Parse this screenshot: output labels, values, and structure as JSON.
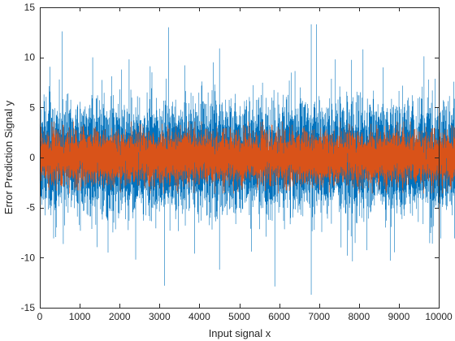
{
  "chart_data": {
    "type": "line",
    "title": "",
    "xlabel": "Input signal x",
    "ylabel": "Error Prediction Signal y",
    "xlim": [
      0,
      10000
    ],
    "ylim": [
      -15,
      15
    ],
    "xticks": [
      0,
      1000,
      2000,
      3000,
      4000,
      5000,
      6000,
      7000,
      8000,
      9000,
      10000
    ],
    "yticks": [
      -15,
      -10,
      -5,
      0,
      5,
      10,
      15
    ],
    "grid": false,
    "legend": "none",
    "sample_count": 10000,
    "series": [
      {
        "color": "#0072BD",
        "typical_range": [
          -5,
          5
        ],
        "min": -13.7,
        "max": 13.3,
        "peaks": [
          {
            "x": 550,
            "y": 12.6
          },
          {
            "x": 1320,
            "y": 10.0
          },
          {
            "x": 2230,
            "y": 9.8
          },
          {
            "x": 2800,
            "y": 8.5
          },
          {
            "x": 3220,
            "y": 13.0
          },
          {
            "x": 3630,
            "y": 9.2
          },
          {
            "x": 4500,
            "y": 10.9
          },
          {
            "x": 6800,
            "y": 13.3
          },
          {
            "x": 7400,
            "y": 9.8
          },
          {
            "x": 8100,
            "y": 10.8
          },
          {
            "x": 8600,
            "y": 9.0
          },
          {
            "x": 9630,
            "y": 10.1
          }
        ],
        "troughs": [
          {
            "x": 1700,
            "y": -9.5
          },
          {
            "x": 2400,
            "y": -10.2
          },
          {
            "x": 3120,
            "y": -12.8
          },
          {
            "x": 3870,
            "y": -9.6
          },
          {
            "x": 4500,
            "y": -11.2
          },
          {
            "x": 5300,
            "y": -9.4
          },
          {
            "x": 6800,
            "y": -13.7
          },
          {
            "x": 7700,
            "y": -9.8
          },
          {
            "x": 8780,
            "y": -10.3
          },
          {
            "x": 9830,
            "y": -8.6
          }
        ]
      },
      {
        "color": "#D95319",
        "typical_range": [
          -2.5,
          2.5
        ],
        "min": -3.6,
        "max": 3.6
      }
    ]
  }
}
